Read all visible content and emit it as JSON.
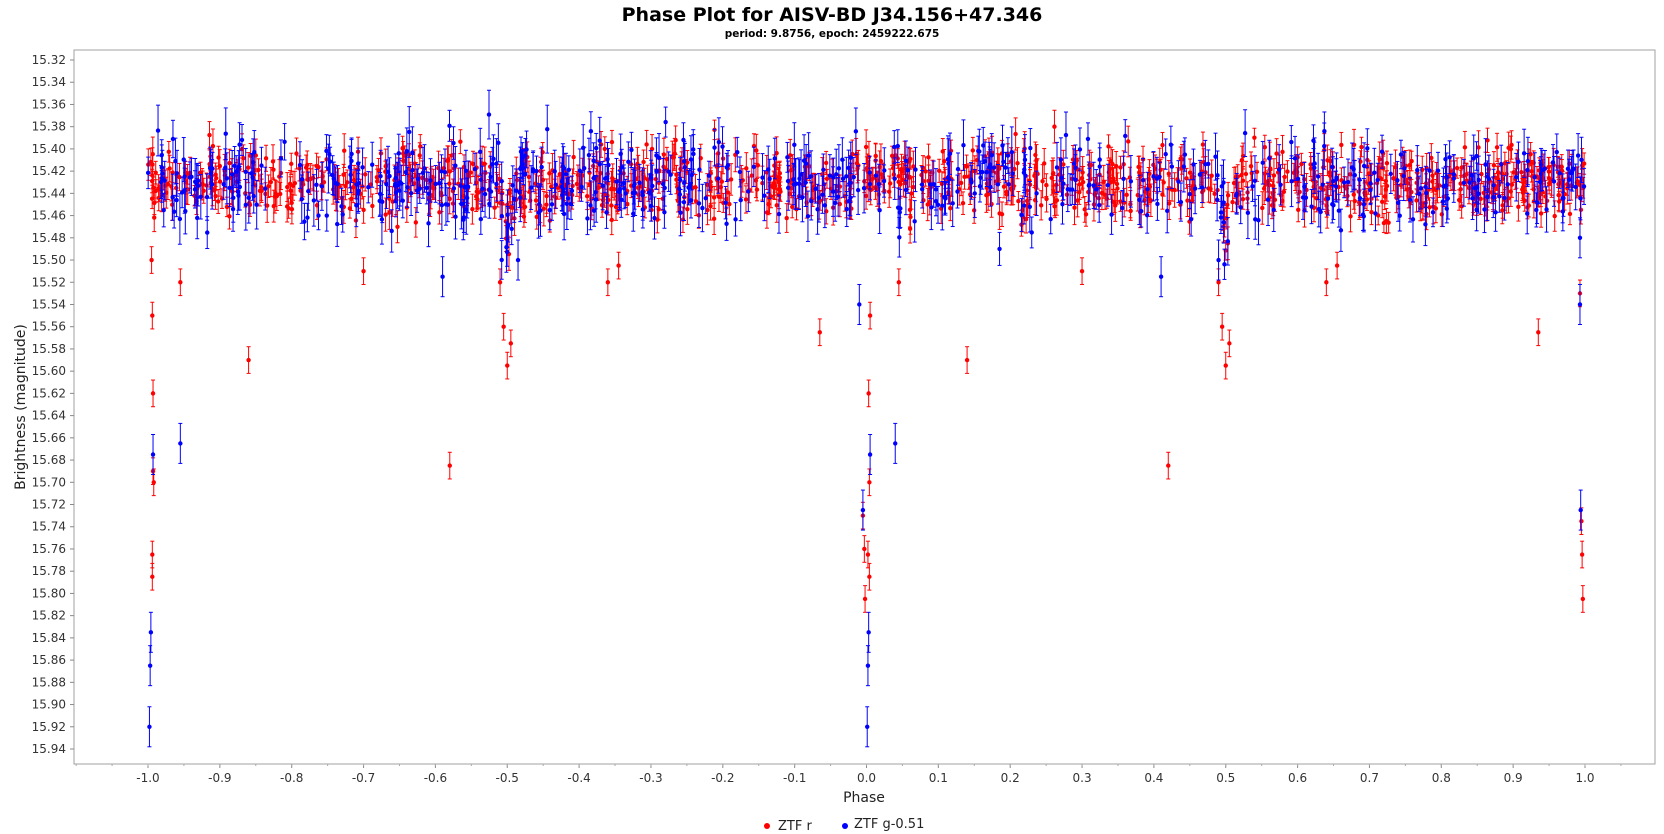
{
  "chart_data": {
    "type": "scatter",
    "title": "Phase Plot for AISV-BD J34.156+47.346",
    "subtitle": "period: 9.8756, epoch: 2459222.675",
    "xlabel": "Phase",
    "ylabel": "Brightness (magnitude)",
    "xlim": [
      -1.1,
      1.1
    ],
    "ylim": [
      15.32,
      15.94
    ],
    "y_inverted": true,
    "grid": false,
    "legend_position": "bottom",
    "x_ticks": [
      "-1.0",
      "-0.9",
      "-0.8",
      "-0.7",
      "-0.6",
      "-0.5",
      "-0.4",
      "-0.3",
      "-0.2",
      "-0.1",
      "0.0",
      "0.1",
      "0.2",
      "0.3",
      "0.4",
      "0.5",
      "0.6",
      "0.7",
      "0.8",
      "0.9",
      "1.0"
    ],
    "y_ticks": [
      "15.32",
      "15.34",
      "15.36",
      "15.38",
      "15.40",
      "15.42",
      "15.44",
      "15.46",
      "15.48",
      "15.50",
      "15.52",
      "15.54",
      "15.56",
      "15.58",
      "15.60",
      "15.62",
      "15.64",
      "15.66",
      "15.68",
      "15.70",
      "15.72",
      "15.74",
      "15.76",
      "15.78",
      "15.80",
      "15.82",
      "15.84",
      "15.86",
      "15.88",
      "15.90",
      "15.92",
      "15.94"
    ],
    "series": [
      {
        "name": "ZTF r",
        "color": "#ff0000",
        "error_bar_typical": 0.012,
        "baseline_mag": 15.43,
        "baseline_scatter": 0.025,
        "points": [
          {
            "x": -0.995,
            "y": 15.5
          },
          {
            "x": -0.994,
            "y": 15.55
          },
          {
            "x": -0.993,
            "y": 15.62
          },
          {
            "x": -0.993,
            "y": 15.69
          },
          {
            "x": -0.992,
            "y": 15.7
          },
          {
            "x": -0.994,
            "y": 15.765
          },
          {
            "x": -0.994,
            "y": 15.785
          },
          {
            "x": -0.955,
            "y": 15.52
          },
          {
            "x": -0.86,
            "y": 15.59
          },
          {
            "x": -0.7,
            "y": 15.51
          },
          {
            "x": -0.58,
            "y": 15.685
          },
          {
            "x": -0.51,
            "y": 15.52
          },
          {
            "x": -0.505,
            "y": 15.56
          },
          {
            "x": -0.5,
            "y": 15.595
          },
          {
            "x": -0.495,
            "y": 15.575
          },
          {
            "x": -0.36,
            "y": 15.52
          },
          {
            "x": -0.345,
            "y": 15.505
          },
          {
            "x": -0.065,
            "y": 15.565
          },
          {
            "x": -0.005,
            "y": 15.73
          },
          {
            "x": -0.003,
            "y": 15.76
          },
          {
            "x": -0.002,
            "y": 15.805
          },
          {
            "x": 0.003,
            "y": 15.62
          },
          {
            "x": 0.004,
            "y": 15.7
          },
          {
            "x": 0.002,
            "y": 15.765
          },
          {
            "x": 0.004,
            "y": 15.785
          },
          {
            "x": 0.005,
            "y": 15.55
          },
          {
            "x": 0.045,
            "y": 15.52
          },
          {
            "x": 0.14,
            "y": 15.59
          },
          {
            "x": 0.3,
            "y": 15.51
          },
          {
            "x": 0.42,
            "y": 15.685
          },
          {
            "x": 0.49,
            "y": 15.52
          },
          {
            "x": 0.495,
            "y": 15.56
          },
          {
            "x": 0.5,
            "y": 15.595
          },
          {
            "x": 0.505,
            "y": 15.575
          },
          {
            "x": 0.64,
            "y": 15.52
          },
          {
            "x": 0.655,
            "y": 15.505
          },
          {
            "x": 0.935,
            "y": 15.565
          },
          {
            "x": 0.993,
            "y": 15.53
          },
          {
            "x": 0.995,
            "y": 15.735
          },
          {
            "x": 0.996,
            "y": 15.765
          },
          {
            "x": 0.997,
            "y": 15.805
          }
        ]
      },
      {
        "name": "ZTF g-0.51",
        "color": "#0000ff",
        "error_bar_typical": 0.018,
        "baseline_mag": 15.43,
        "baseline_scatter": 0.03,
        "points": [
          {
            "x": -0.993,
            "y": 15.675
          },
          {
            "x": -0.996,
            "y": 15.835
          },
          {
            "x": -0.997,
            "y": 15.865
          },
          {
            "x": -0.998,
            "y": 15.92
          },
          {
            "x": -0.955,
            "y": 15.665
          },
          {
            "x": -0.59,
            "y": 15.515
          },
          {
            "x": -0.485,
            "y": 15.5
          },
          {
            "x": -0.01,
            "y": 15.54
          },
          {
            "x": -0.005,
            "y": 15.725
          },
          {
            "x": 0.003,
            "y": 15.835
          },
          {
            "x": 0.002,
            "y": 15.865
          },
          {
            "x": 0.001,
            "y": 15.92
          },
          {
            "x": 0.005,
            "y": 15.675
          },
          {
            "x": 0.04,
            "y": 15.665
          },
          {
            "x": 0.41,
            "y": 15.515
          },
          {
            "x": 0.49,
            "y": 15.5
          },
          {
            "x": 0.993,
            "y": 15.48
          },
          {
            "x": 0.993,
            "y": 15.54
          },
          {
            "x": 0.994,
            "y": 15.725
          }
        ]
      }
    ]
  }
}
